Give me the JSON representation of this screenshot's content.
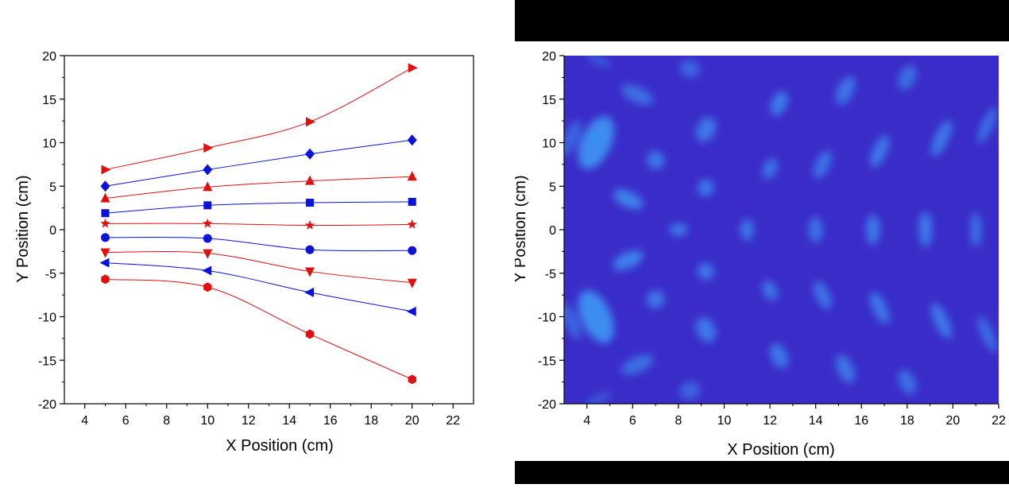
{
  "charts": [
    {
      "chart_data": {
        "type": "line",
        "title": "",
        "xlabel": "X Position (cm)",
        "ylabel": "Y Position (cm)",
        "xlim": [
          3,
          23
        ],
        "ylim": [
          -20,
          20
        ],
        "xticks": [
          4,
          6,
          8,
          10,
          12,
          14,
          16,
          18,
          20,
          22
        ],
        "yticks": [
          -20,
          -15,
          -10,
          -5,
          0,
          5,
          10,
          15,
          20
        ],
        "x": [
          5,
          10,
          15,
          20
        ],
        "legend": "none",
        "grid": false,
        "series": [
          {
            "color": "#e01010",
            "marker": "triangle-right",
            "values": [
              6.9,
              9.4,
              12.4,
              18.6
            ]
          },
          {
            "color": "#0a14d8",
            "marker": "diamond",
            "values": [
              5.0,
              6.9,
              8.7,
              10.3
            ]
          },
          {
            "color": "#e01010",
            "marker": "triangle-up",
            "values": [
              3.6,
              4.9,
              5.6,
              6.1
            ]
          },
          {
            "color": "#0a14d8",
            "marker": "square",
            "values": [
              1.9,
              2.8,
              3.1,
              3.2
            ]
          },
          {
            "color": "#e01010",
            "marker": "star",
            "values": [
              0.7,
              0.7,
              0.5,
              0.6
            ]
          },
          {
            "color": "#0a14d8",
            "marker": "circle",
            "values": [
              -0.9,
              -1.0,
              -2.3,
              -2.4
            ]
          },
          {
            "color": "#e01010",
            "marker": "triangle-down",
            "values": [
              -2.6,
              -2.7,
              -4.8,
              -6.1
            ]
          },
          {
            "color": "#0a14d8",
            "marker": "triangle-left",
            "values": [
              -3.8,
              -4.7,
              -7.2,
              -9.4
            ]
          },
          {
            "color": "#e01010",
            "marker": "hexagon",
            "values": [
              -5.7,
              -6.6,
              -12.0,
              -17.2
            ]
          }
        ]
      }
    },
    {
      "chart_data": {
        "type": "heatmap",
        "title": "",
        "xlabel": "X Position (cm)",
        "ylabel": "Y Position (cm)",
        "xlim": [
          3,
          22
        ],
        "ylim": [
          -20,
          20
        ],
        "xticks": [
          4,
          6,
          8,
          10,
          12,
          14,
          16,
          18,
          20,
          22
        ],
        "yticks": [
          -20,
          -15,
          -10,
          -5,
          0,
          5,
          10,
          15,
          20
        ],
        "colors": {
          "background": "#3a2cc8",
          "highlight": "#3d8cf0"
        },
        "blobs": [
          {
            "x": 4.4,
            "y": 10,
            "w": 1.3,
            "h": 6.5,
            "v": 1.0
          },
          {
            "x": 4.4,
            "y": -10,
            "w": 1.3,
            "h": 6.5,
            "v": 1.0
          },
          {
            "x": 3.3,
            "y": 10.5,
            "w": 0.6,
            "h": 4.5,
            "v": 0.6
          },
          {
            "x": 3.3,
            "y": -10.5,
            "w": 0.6,
            "h": 4.5,
            "v": 0.6
          },
          {
            "x": 5.8,
            "y": 3.5,
            "w": 1.4,
            "h": 1.8,
            "v": 0.9
          },
          {
            "x": 5.8,
            "y": -3.5,
            "w": 1.4,
            "h": 1.8,
            "v": 0.9
          },
          {
            "x": 6.2,
            "y": 15.5,
            "w": 1.5,
            "h": 1.8,
            "v": 0.7
          },
          {
            "x": 6.2,
            "y": -15.5,
            "w": 1.5,
            "h": 1.8,
            "v": 0.7
          },
          {
            "x": 4.5,
            "y": 19.5,
            "w": 1.2,
            "h": 1.0,
            "v": 0.5
          },
          {
            "x": 4.5,
            "y": -19.5,
            "w": 1.2,
            "h": 1.0,
            "v": 0.5
          },
          {
            "x": 7.0,
            "y": 8.0,
            "w": 0.8,
            "h": 2.0,
            "v": 0.8
          },
          {
            "x": 7.0,
            "y": -8.0,
            "w": 0.8,
            "h": 2.0,
            "v": 0.8
          },
          {
            "x": 8.0,
            "y": 0,
            "w": 0.8,
            "h": 1.5,
            "v": 0.8
          },
          {
            "x": 9.2,
            "y": 4.8,
            "w": 0.7,
            "h": 2.0,
            "v": 0.8
          },
          {
            "x": 9.2,
            "y": -4.8,
            "w": 0.7,
            "h": 2.0,
            "v": 0.8
          },
          {
            "x": 9.2,
            "y": 11.5,
            "w": 0.8,
            "h": 3.0,
            "v": 0.8
          },
          {
            "x": 9.2,
            "y": -11.5,
            "w": 0.8,
            "h": 3.0,
            "v": 0.8
          },
          {
            "x": 8.5,
            "y": 18.5,
            "w": 0.9,
            "h": 2.0,
            "v": 0.6
          },
          {
            "x": 8.5,
            "y": -18.5,
            "w": 0.9,
            "h": 2.0,
            "v": 0.6
          },
          {
            "x": 11.0,
            "y": 0,
            "w": 0.6,
            "h": 2.5,
            "v": 0.75
          },
          {
            "x": 12.0,
            "y": 7.0,
            "w": 0.6,
            "h": 2.5,
            "v": 0.75
          },
          {
            "x": 12.0,
            "y": -7.0,
            "w": 0.6,
            "h": 2.5,
            "v": 0.75
          },
          {
            "x": 12.4,
            "y": 14.5,
            "w": 0.7,
            "h": 3.0,
            "v": 0.8
          },
          {
            "x": 12.4,
            "y": -14.5,
            "w": 0.7,
            "h": 3.0,
            "v": 0.8
          },
          {
            "x": 14.0,
            "y": 0,
            "w": 0.6,
            "h": 3.0,
            "v": 0.75
          },
          {
            "x": 14.3,
            "y": 7.5,
            "w": 0.6,
            "h": 3.5,
            "v": 0.75
          },
          {
            "x": 14.3,
            "y": -7.5,
            "w": 0.6,
            "h": 3.5,
            "v": 0.75
          },
          {
            "x": 15.3,
            "y": 16.0,
            "w": 0.7,
            "h": 3.5,
            "v": 0.75
          },
          {
            "x": 15.3,
            "y": -16.0,
            "w": 0.7,
            "h": 3.5,
            "v": 0.75
          },
          {
            "x": 16.5,
            "y": 0,
            "w": 0.6,
            "h": 3.5,
            "v": 0.8
          },
          {
            "x": 16.8,
            "y": 9.0,
            "w": 0.6,
            "h": 4.0,
            "v": 0.8
          },
          {
            "x": 16.8,
            "y": -9.0,
            "w": 0.6,
            "h": 4.0,
            "v": 0.8
          },
          {
            "x": 18.0,
            "y": 17.5,
            "w": 0.7,
            "h": 3.0,
            "v": 0.7
          },
          {
            "x": 18.0,
            "y": -17.5,
            "w": 0.7,
            "h": 3.0,
            "v": 0.7
          },
          {
            "x": 18.8,
            "y": 0,
            "w": 0.6,
            "h": 4.0,
            "v": 0.8
          },
          {
            "x": 19.5,
            "y": 10.5,
            "w": 0.6,
            "h": 4.5,
            "v": 0.8
          },
          {
            "x": 19.5,
            "y": -10.5,
            "w": 0.6,
            "h": 4.5,
            "v": 0.8
          },
          {
            "x": 21.0,
            "y": 0,
            "w": 0.5,
            "h": 4.0,
            "v": 0.7
          },
          {
            "x": 21.5,
            "y": 12.0,
            "w": 0.5,
            "h": 4.5,
            "v": 0.7
          },
          {
            "x": 21.5,
            "y": -12.0,
            "w": 0.5,
            "h": 4.5,
            "v": 0.7
          }
        ]
      }
    }
  ]
}
